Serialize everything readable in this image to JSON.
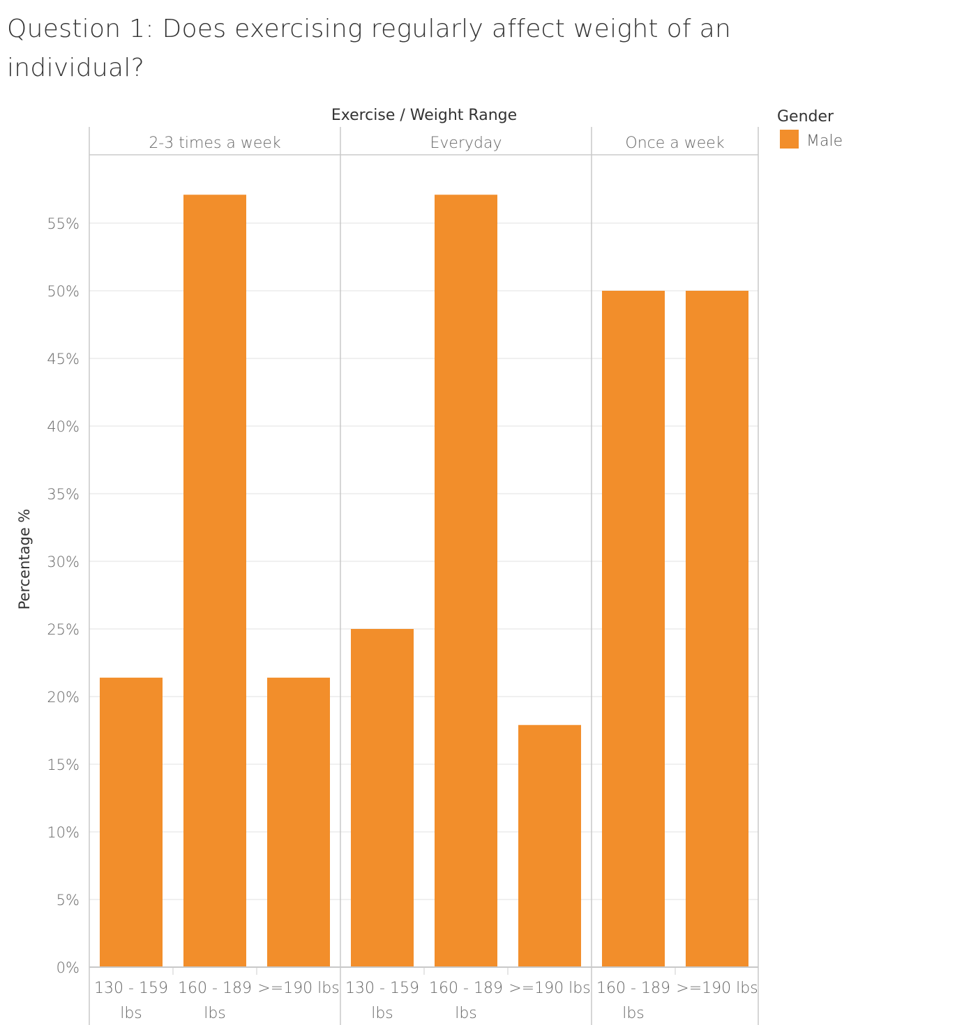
{
  "title": "Question 1: Does exercising regularly affect weight of an individual?",
  "chart_data": {
    "type": "bar",
    "column_header": "Exercise  /  Weight Range",
    "ylabel": "Percentage %",
    "ylim": [
      0,
      60
    ],
    "y_ticks": [
      "0%",
      "5%",
      "10%",
      "15%",
      "20%",
      "25%",
      "30%",
      "35%",
      "40%",
      "45%",
      "50%",
      "55%"
    ],
    "y_tick_values": [
      0,
      5,
      10,
      15,
      20,
      25,
      30,
      35,
      40,
      45,
      50,
      55
    ],
    "bar_color": "#f28e2b",
    "legend": {
      "title": "Gender",
      "entries": [
        {
          "label": "Male",
          "color": "#f28e2b"
        }
      ]
    },
    "panes": [
      {
        "name": "2-3 times a week",
        "bars": [
          {
            "line1": "130 - 159",
            "line2": "lbs",
            "value": 21.4
          },
          {
            "line1": "160 - 189",
            "line2": "lbs",
            "value": 57.1
          },
          {
            "line1": ">=190 lbs",
            "line2": "",
            "value": 21.4
          }
        ]
      },
      {
        "name": "Everyday",
        "bars": [
          {
            "line1": "130 - 159",
            "line2": "lbs",
            "value": 25.0
          },
          {
            "line1": "160 - 189",
            "line2": "lbs",
            "value": 57.1
          },
          {
            "line1": ">=190 lbs",
            "line2": "",
            "value": 17.9
          }
        ]
      },
      {
        "name": "Once a week",
        "bars": [
          {
            "line1": "160 - 189",
            "line2": "lbs",
            "value": 50.0
          },
          {
            "line1": ">=190 lbs",
            "line2": "",
            "value": 50.0
          }
        ]
      }
    ]
  }
}
